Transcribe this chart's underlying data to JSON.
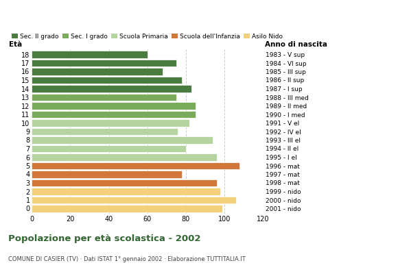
{
  "ages": [
    18,
    17,
    16,
    15,
    14,
    13,
    12,
    11,
    10,
    9,
    8,
    7,
    6,
    5,
    4,
    3,
    2,
    1,
    0
  ],
  "values": [
    60,
    75,
    68,
    78,
    83,
    75,
    85,
    85,
    82,
    76,
    94,
    80,
    96,
    108,
    78,
    96,
    98,
    106,
    99
  ],
  "right_labels": [
    "1983 - V sup",
    "1984 - VI sup",
    "1985 - III sup",
    "1986 - II sup",
    "1987 - I sup",
    "1988 - III med",
    "1989 - II med",
    "1990 - I med",
    "1991 - V el",
    "1992 - IV el",
    "1993 - III el",
    "1994 - II el",
    "1995 - I el",
    "1996 - mat",
    "1997 - mat",
    "1998 - mat",
    "1999 - nido",
    "2000 - nido",
    "2001 - nido"
  ],
  "colors": [
    "#4a7c3f",
    "#4a7c3f",
    "#4a7c3f",
    "#4a7c3f",
    "#4a7c3f",
    "#7aab5a",
    "#7aab5a",
    "#7aab5a",
    "#b5d4a0",
    "#b5d4a0",
    "#b5d4a0",
    "#b5d4a0",
    "#b5d4a0",
    "#d2773a",
    "#d2773a",
    "#d2773a",
    "#f5d07a",
    "#f5d07a",
    "#f5d07a"
  ],
  "legend_labels": [
    "Sec. II grado",
    "Sec. I grado",
    "Scuola Primaria",
    "Scuola dell'Infanzia",
    "Asilo Nido"
  ],
  "legend_colors": [
    "#4a7c3f",
    "#7aab5a",
    "#b5d4a0",
    "#d2773a",
    "#f5d07a"
  ],
  "title": "Popolazione per età scolastica - 2002",
  "subtitle": "COMUNE DI CASIER (TV) · Dati ISTAT 1° gennaio 2002 · Elaborazione TUTTITALIA.IT",
  "xlabel_eta": "Età",
  "xlabel_anno": "Anno di nascita",
  "xlim": [
    0,
    120
  ],
  "xticks": [
    0,
    20,
    40,
    60,
    80,
    100,
    120
  ],
  "background_color": "#ffffff",
  "grid_color": "#cccccc",
  "bar_height": 0.82
}
